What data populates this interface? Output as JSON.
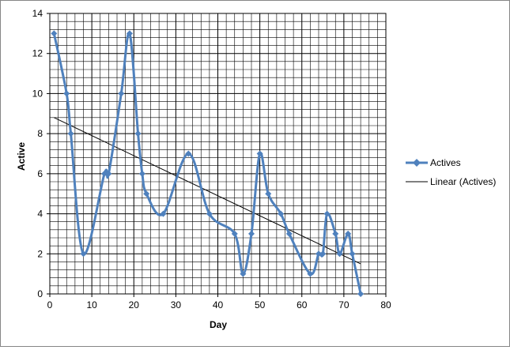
{
  "chart_data": {
    "type": "line",
    "title": "",
    "xlabel": "Day",
    "ylabel": "Active",
    "xlim": [
      0,
      80
    ],
    "ylim": [
      0,
      14
    ],
    "x_ticks": [
      "0",
      "10",
      "20",
      "30",
      "40",
      "50",
      "60",
      "70",
      "80"
    ],
    "y_ticks": [
      "0",
      "2",
      "4",
      "6",
      "8",
      "10",
      "12",
      "14"
    ],
    "grid": true,
    "legend_position": "right",
    "series": [
      {
        "name": "Actives",
        "color": "#4f81bd",
        "marker": "diamond",
        "smooth": true,
        "x": [
          1,
          4,
          5,
          8,
          13,
          14,
          17,
          19,
          21,
          22,
          23,
          27,
          33,
          38,
          44,
          46,
          48,
          50,
          52,
          55,
          57,
          62,
          64,
          65,
          66,
          68,
          69,
          71,
          72,
          74
        ],
        "y": [
          13,
          10,
          8,
          2,
          6,
          6,
          10,
          13,
          8,
          6,
          5,
          4,
          7,
          4,
          3,
          1,
          3,
          7,
          5,
          4,
          3,
          1,
          2,
          2,
          4,
          3,
          2,
          3,
          2,
          0
        ]
      },
      {
        "name": "Linear (Actives)",
        "color": "#000000",
        "type": "trendline",
        "x": [
          1,
          74
        ],
        "y": [
          8.8,
          1.5
        ]
      }
    ]
  }
}
